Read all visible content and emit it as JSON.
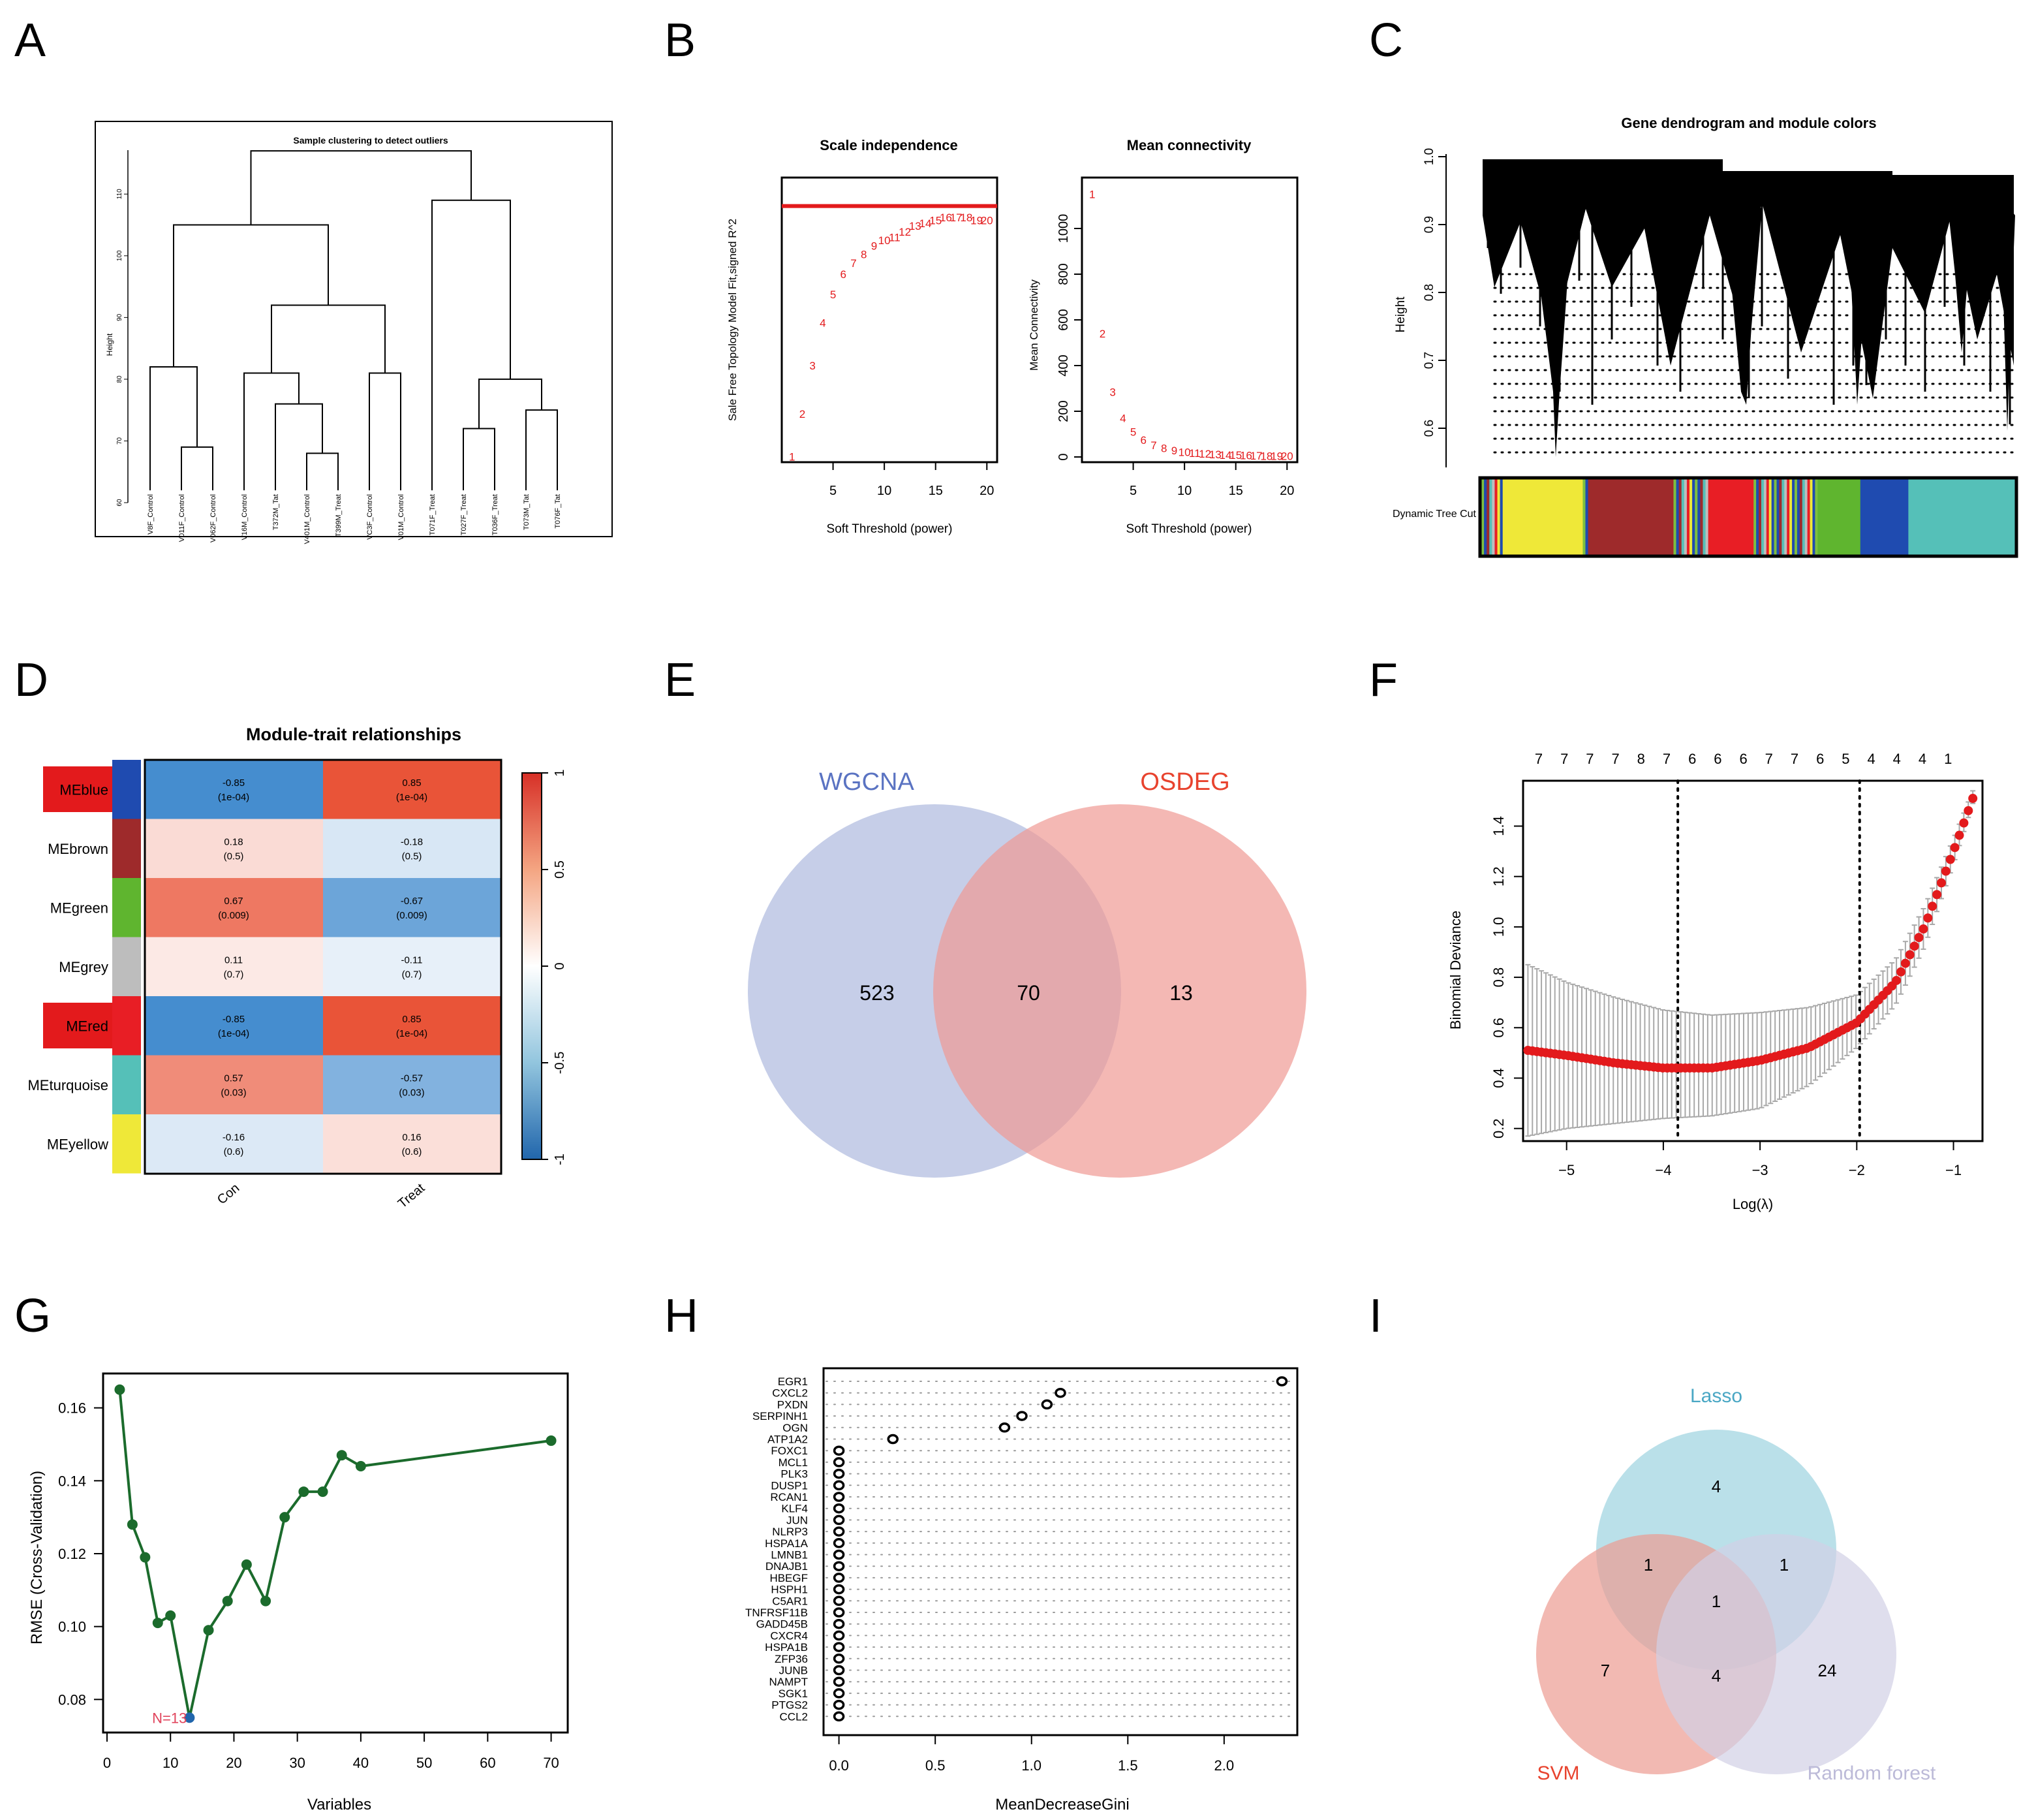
{
  "panel_labels": [
    "A",
    "B",
    "C",
    "D",
    "E",
    "F",
    "G",
    "H",
    "I"
  ],
  "colors": {
    "red": "#e31a1c",
    "dark_green": "#1b6b2c",
    "blue_point": "#2166ac",
    "n_label": "#e0435b",
    "wgcna_fill": "#aeb9de",
    "wgcna_text": "#5a73c2",
    "osdeg_fill": "#ef9a94",
    "osdeg_text": "#e8432e",
    "lasso_fill": "#a3d6e2",
    "lasso_text": "#4aa7c4",
    "svm_fill": "#ec9b91",
    "svm_text": "#e8432e",
    "rf_fill": "#d2d0e6",
    "rf_text": "#bcbad8",
    "module_blue": "#1f4bb0",
    "module_brown": "#9e2a2b",
    "module_green": "#5fb52f",
    "module_grey": "#bdbdbd",
    "module_red": "#e81e25",
    "module_turquoise": "#55c0b8",
    "module_yellow": "#efe838"
  },
  "chart_data": [
    {
      "panel": "A",
      "type": "dendrogram",
      "title": "Sample clustering to detect outliers",
      "ylabel": "Height",
      "yticks": [
        "60",
        "70",
        "80",
        "90",
        "100",
        "110"
      ],
      "ylim": [
        60,
        115
      ],
      "leaves": [
        "V8F_Control",
        "V011F_Control",
        "V062F_Control",
        "V16M_Control",
        "T372M_Tat",
        "V401M_Control",
        "T399M_Treat",
        "VC3F_Control",
        "V01M_Control",
        "T071F_Treat",
        "T027F_Treat",
        "T036F_Treat",
        "T073M_Tat",
        "T076F_Tat"
      ],
      "merges": [
        [
          1,
          2,
          69
        ],
        [
          5,
          6,
          68
        ],
        [
          4,
          15,
          76
        ],
        [
          3,
          16,
          81
        ],
        [
          0,
          14,
          82
        ],
        [
          7,
          8,
          81
        ],
        [
          17,
          19,
          92
        ],
        [
          18,
          20,
          105
        ],
        [
          10,
          11,
          72
        ],
        [
          12,
          13,
          75
        ],
        [
          22,
          23,
          80
        ],
        [
          9,
          24,
          109
        ],
        [
          21,
          25,
          117
        ]
      ]
    },
    {
      "panel": "B1",
      "type": "scatter",
      "title": "Scale independence",
      "xlabel": "Soft Threshold (power)",
      "ylabel": "Sale Free Topology Model Fit,signed R^2",
      "xticks": [
        "5",
        "10",
        "15",
        "20"
      ],
      "xlim": [
        0,
        21
      ],
      "ylim": [
        0,
        1
      ],
      "hline": 0.9,
      "points": [
        {
          "x": 1,
          "y": 0.02
        },
        {
          "x": 2,
          "y": 0.17
        },
        {
          "x": 3,
          "y": 0.34
        },
        {
          "x": 4,
          "y": 0.49
        },
        {
          "x": 5,
          "y": 0.59
        },
        {
          "x": 6,
          "y": 0.66
        },
        {
          "x": 7,
          "y": 0.7
        },
        {
          "x": 8,
          "y": 0.73
        },
        {
          "x": 9,
          "y": 0.76
        },
        {
          "x": 10,
          "y": 0.78
        },
        {
          "x": 11,
          "y": 0.79
        },
        {
          "x": 12,
          "y": 0.81
        },
        {
          "x": 13,
          "y": 0.83
        },
        {
          "x": 14,
          "y": 0.84
        },
        {
          "x": 15,
          "y": 0.85
        },
        {
          "x": 16,
          "y": 0.86
        },
        {
          "x": 17,
          "y": 0.86
        },
        {
          "x": 18,
          "y": 0.86
        },
        {
          "x": 19,
          "y": 0.85
        },
        {
          "x": 20,
          "y": 0.85
        }
      ]
    },
    {
      "panel": "B2",
      "type": "scatter",
      "title": "Mean connectivity",
      "xlabel": "Soft Threshold (power)",
      "ylabel": "Mean Connectivity",
      "xticks": [
        "5",
        "10",
        "15",
        "20"
      ],
      "yticks": [
        "0",
        "200",
        "400",
        "600",
        "800",
        "1000"
      ],
      "xlim": [
        0,
        21
      ],
      "ylim": [
        0,
        1150
      ],
      "points": [
        {
          "x": 1,
          "y": 1150
        },
        {
          "x": 2,
          "y": 540
        },
        {
          "x": 3,
          "y": 285
        },
        {
          "x": 4,
          "y": 170
        },
        {
          "x": 5,
          "y": 110
        },
        {
          "x": 6,
          "y": 75
        },
        {
          "x": 7,
          "y": 52
        },
        {
          "x": 8,
          "y": 38
        },
        {
          "x": 9,
          "y": 28
        },
        {
          "x": 10,
          "y": 22
        },
        {
          "x": 11,
          "y": 17
        },
        {
          "x": 12,
          "y": 14
        },
        {
          "x": 13,
          "y": 11
        },
        {
          "x": 14,
          "y": 9
        },
        {
          "x": 15,
          "y": 8
        },
        {
          "x": 16,
          "y": 7
        },
        {
          "x": 17,
          "y": 6
        },
        {
          "x": 18,
          "y": 5
        },
        {
          "x": 19,
          "y": 4
        },
        {
          "x": 20,
          "y": 4
        }
      ]
    },
    {
      "panel": "C",
      "type": "dendrogram",
      "title": "Gene dendrogram and module colors",
      "ylabel": "Height",
      "yticks": [
        "0.6",
        "0.7",
        "0.8",
        "0.9",
        "1.0"
      ],
      "ylim": [
        0.54,
        1.0
      ],
      "colorbar_label": "Dynamic Tree Cut",
      "modules": [
        {
          "color": "mixed",
          "start": 0.0,
          "end": 0.04
        },
        {
          "color": "yellow",
          "start": 0.04,
          "end": 0.19
        },
        {
          "color": "mixed",
          "start": 0.19,
          "end": 0.2
        },
        {
          "color": "brown",
          "start": 0.2,
          "end": 0.36
        },
        {
          "color": "mixed",
          "start": 0.36,
          "end": 0.43
        },
        {
          "color": "red",
          "start": 0.43,
          "end": 0.51
        },
        {
          "color": "mixed",
          "start": 0.51,
          "end": 0.63
        },
        {
          "color": "green",
          "start": 0.63,
          "end": 0.71
        },
        {
          "color": "blue",
          "start": 0.71,
          "end": 0.8
        },
        {
          "color": "turquoise",
          "start": 0.8,
          "end": 1.0
        }
      ]
    },
    {
      "panel": "D",
      "type": "heatmap",
      "title": "Module-trait relationships",
      "columns": [
        "Con",
        "Treat"
      ],
      "rows": [
        "MEblue",
        "MEbrown",
        "MEgreen",
        "MEgrey",
        "MEred",
        "MEturquoise",
        "MEyellow"
      ],
      "highlighted_rows": [
        "MEblue",
        "MEred"
      ],
      "values": [
        [
          -0.85,
          0.85
        ],
        [
          0.18,
          -0.18
        ],
        [
          0.67,
          -0.67
        ],
        [
          0.11,
          -0.11
        ],
        [
          -0.85,
          0.85
        ],
        [
          0.57,
          -0.57
        ],
        [
          -0.16,
          0.16
        ]
      ],
      "cell_text": [
        [
          "-0.85",
          "0.85"
        ],
        [
          "0.18",
          "-0.18"
        ],
        [
          "0.67",
          "-0.67"
        ],
        [
          "0.11",
          "-0.11"
        ],
        [
          "-0.85",
          "0.85"
        ],
        [
          "0.57",
          "-0.57"
        ],
        [
          "-0.16",
          "0.16"
        ]
      ],
      "pvalues": [
        [
          "(1e-04)",
          "(1e-04)"
        ],
        [
          "(0.5)",
          "(0.5)"
        ],
        [
          "(0.009)",
          "(0.009)"
        ],
        [
          "(0.7)",
          "(0.7)"
        ],
        [
          "(1e-04)",
          "(1e-04)"
        ],
        [
          "(0.03)",
          "(0.03)"
        ],
        [
          "(0.6)",
          "(0.6)"
        ]
      ],
      "legend_ticks": [
        "1",
        "0.5",
        "0",
        "-0.5",
        "-1"
      ]
    },
    {
      "panel": "E",
      "type": "venn",
      "sets": [
        "WGCNA",
        "OSDEG"
      ],
      "counts": {
        "only_a": "523",
        "both": "70",
        "only_b": "13"
      }
    },
    {
      "panel": "F",
      "type": "line",
      "xlabel": "Log(λ)",
      "ylabel": "Binomial Deviance",
      "xticks": [
        "-5",
        "-4",
        "-3",
        "-2",
        "-1"
      ],
      "yticks": [
        "0.2",
        "0.4",
        "0.6",
        "0.8",
        "1.0",
        "1.2",
        "1.4"
      ],
      "xlim": [
        -5.45,
        -0.7
      ],
      "ylim": [
        0.15,
        1.58
      ],
      "top_labels": [
        "7",
        "7",
        "7",
        "7",
        "8",
        "7",
        "6",
        "6",
        "6",
        "7",
        "7",
        "6",
        "5",
        "4",
        "4",
        "4",
        "1"
      ],
      "vlines": [
        -3.85,
        -1.97
      ],
      "curve": [
        {
          "x": -5.4,
          "y": 0.51
        },
        {
          "x": -5.0,
          "y": 0.49
        },
        {
          "x": -4.5,
          "y": 0.46
        },
        {
          "x": -4.0,
          "y": 0.44
        },
        {
          "x": -3.5,
          "y": 0.44
        },
        {
          "x": -3.0,
          "y": 0.47
        },
        {
          "x": -2.5,
          "y": 0.52
        },
        {
          "x": -2.0,
          "y": 0.62
        },
        {
          "x": -1.6,
          "y": 0.78
        },
        {
          "x": -1.3,
          "y": 1.0
        },
        {
          "x": -1.0,
          "y": 1.3
        },
        {
          "x": -0.8,
          "y": 1.51
        }
      ],
      "lower": [
        {
          "x": -5.4,
          "y": 0.17
        },
        {
          "x": -5.0,
          "y": 0.2
        },
        {
          "x": -4.5,
          "y": 0.22
        },
        {
          "x": -4.0,
          "y": 0.24
        },
        {
          "x": -3.5,
          "y": 0.25
        },
        {
          "x": -3.0,
          "y": 0.28
        },
        {
          "x": -2.5,
          "y": 0.37
        },
        {
          "x": -2.0,
          "y": 0.52
        },
        {
          "x": -1.6,
          "y": 0.69
        },
        {
          "x": -1.3,
          "y": 0.92
        },
        {
          "x": -1.0,
          "y": 1.25
        },
        {
          "x": -0.8,
          "y": 1.49
        }
      ],
      "upper": [
        {
          "x": -5.4,
          "y": 0.85
        },
        {
          "x": -5.0,
          "y": 0.78
        },
        {
          "x": -4.5,
          "y": 0.72
        },
        {
          "x": -4.0,
          "y": 0.67
        },
        {
          "x": -3.5,
          "y": 0.65
        },
        {
          "x": -3.0,
          "y": 0.66
        },
        {
          "x": -2.5,
          "y": 0.68
        },
        {
          "x": -2.0,
          "y": 0.73
        },
        {
          "x": -1.6,
          "y": 0.87
        },
        {
          "x": -1.3,
          "y": 1.08
        },
        {
          "x": -1.0,
          "y": 1.35
        },
        {
          "x": -0.8,
          "y": 1.54
        }
      ]
    },
    {
      "panel": "G",
      "type": "line",
      "xlabel": "Variables",
      "ylabel": "RMSE (Cross-Validation)",
      "xticks": [
        "0",
        "10",
        "20",
        "30",
        "40",
        "50",
        "60",
        "70"
      ],
      "yticks": [
        "0.08",
        "0.10",
        "0.12",
        "0.14",
        "0.16"
      ],
      "xlim": [
        0,
        72
      ],
      "ylim": [
        0.072,
        0.168
      ],
      "annotation": "N=13",
      "best_x": 13,
      "points": [
        {
          "x": 2,
          "y": 0.165
        },
        {
          "x": 4,
          "y": 0.128
        },
        {
          "x": 6,
          "y": 0.119
        },
        {
          "x": 8,
          "y": 0.101
        },
        {
          "x": 10,
          "y": 0.103
        },
        {
          "x": 13,
          "y": 0.075
        },
        {
          "x": 16,
          "y": 0.099
        },
        {
          "x": 19,
          "y": 0.107
        },
        {
          "x": 22,
          "y": 0.117
        },
        {
          "x": 25,
          "y": 0.107
        },
        {
          "x": 28,
          "y": 0.13
        },
        {
          "x": 31,
          "y": 0.137
        },
        {
          "x": 34,
          "y": 0.137
        },
        {
          "x": 37,
          "y": 0.147
        },
        {
          "x": 40,
          "y": 0.144
        },
        {
          "x": 70,
          "y": 0.151
        }
      ]
    },
    {
      "panel": "H",
      "type": "scatter",
      "xlabel": "MeanDecreaseGini",
      "xticks": [
        "0.0",
        "0.5",
        "1.0",
        "1.5",
        "2.0"
      ],
      "xlim": [
        -0.08,
        2.38
      ],
      "genes": [
        "EGR1",
        "CXCL2",
        "PXDN",
        "SERPINH1",
        "OGN",
        "ATP1A2",
        "FOXC1",
        "MCL1",
        "PLK3",
        "DUSP1",
        "RCAN1",
        "KLF4",
        "JUN",
        "NLRP3",
        "HSPA1A",
        "LMNB1",
        "DNAJB1",
        "HBEGF",
        "HSPH1",
        "C5AR1",
        "TNFRSF11B",
        "GADD45B",
        "CXCR4",
        "HSPA1B",
        "ZFP36",
        "JUNB",
        "NAMPT",
        "SGK1",
        "PTGS2",
        "CCL2"
      ],
      "values": [
        2.3,
        1.15,
        1.08,
        0.95,
        0.86,
        0.28,
        0,
        0,
        0,
        0,
        0,
        0,
        0,
        0,
        0,
        0,
        0,
        0,
        0,
        0,
        0,
        0,
        0,
        0,
        0,
        0,
        0,
        0,
        0,
        0
      ]
    },
    {
      "panel": "I",
      "type": "venn",
      "sets": [
        "Lasso",
        "SVM",
        "Random forest"
      ],
      "counts": {
        "lasso_only": "4",
        "svm_only": "7",
        "rf_only": "24",
        "lasso_svm": "1",
        "lasso_rf": "1",
        "svm_rf": "4",
        "all": "1"
      }
    }
  ]
}
